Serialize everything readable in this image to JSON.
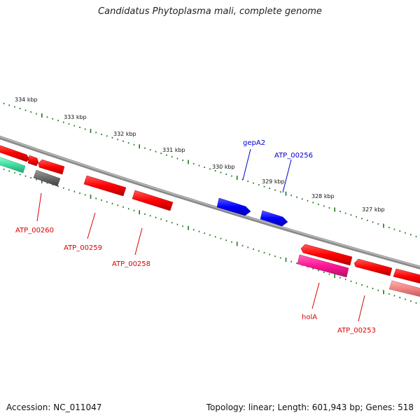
{
  "title": "Candidatus Phytoplasma mali, complete genome",
  "footer": {
    "accession": "Accession: NC_011047",
    "stats": "Topology: linear; Length: 601,943 bp; Genes: 518"
  },
  "colors": {
    "background": "#ffffff",
    "backbone": "#808080",
    "tick": "#1a7a1a",
    "gene_red": "#ff0000",
    "gene_blue": "#0000ff",
    "gene_gray": "#707070",
    "gene_pink": "#ff1493",
    "gene_lightred": "#f08080",
    "gene_teal": "#40e0a0",
    "label_red": "#dd0000",
    "label_blue": "#0000cc"
  },
  "scale_labels": [
    "334 kbp",
    "333 kbp",
    "332 kbp",
    "331 kbp",
    "330 kbp",
    "329 kbp",
    "328 kbp",
    "327 kbp"
  ],
  "gene_labels": {
    "gepA2": "gepA2",
    "ATP_00256": "ATP_00256",
    "ATP_00260": "ATP_00260",
    "ATP_00259": "ATP_00259",
    "ATP_00258": "ATP_00258",
    "holA": "holA",
    "ATP_00253": "ATP_00253"
  }
}
